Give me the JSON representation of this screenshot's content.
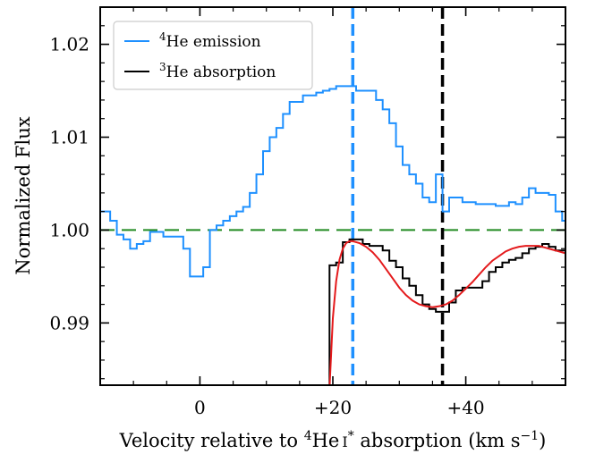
{
  "chart_data": {
    "type": "line",
    "xlabel_parts": [
      "Velocity relative to ",
      "4",
      "He",
      "I",
      "*",
      " absorption (km s",
      "−1",
      ")"
    ],
    "ylabel": "Normalized Flux",
    "xlim": [
      -15,
      55
    ],
    "ylim": [
      0.9833,
      1.024
    ],
    "xticks": [
      0,
      20,
      40
    ],
    "xtick_labels": [
      "0",
      "+20",
      "+40"
    ],
    "yticks": [
      0.99,
      1.0,
      1.01,
      1.02
    ],
    "ytick_labels": [
      "0.99",
      "1.00",
      "1.01",
      "1.02"
    ],
    "legend_location": "upper-left",
    "colors": {
      "emission": "#1e90ff",
      "absorption": "#000000",
      "fit": "#e41a1c",
      "continuum": "#228b22"
    },
    "series": [
      {
        "name_parts": [
          "4",
          "He emission"
        ],
        "style": "steps-mid",
        "color": "#1e90ff",
        "x": [
          -15,
          -14,
          -13,
          -12,
          -11,
          -10,
          -9,
          -8,
          -7,
          -6,
          -5,
          -4,
          -3,
          -2,
          -1,
          0,
          1,
          2,
          3,
          4,
          5,
          6,
          7,
          8,
          9,
          10,
          11,
          12,
          13,
          14,
          15,
          16,
          17,
          18,
          19,
          20,
          21,
          22,
          23,
          24,
          25,
          26,
          27,
          28,
          29,
          30,
          31,
          32,
          33,
          34,
          35,
          36,
          37,
          38,
          39,
          40,
          41,
          42,
          43,
          44,
          45,
          46,
          47,
          48,
          49,
          50,
          51,
          52,
          53,
          54,
          55
        ],
        "y": [
          1.002,
          1.002,
          1.001,
          0.9995,
          0.999,
          0.998,
          0.9985,
          0.9988,
          0.9998,
          0.9998,
          0.9993,
          0.9993,
          0.9993,
          0.998,
          0.995,
          0.995,
          0.996,
          1.0,
          1.0005,
          1.001,
          1.0015,
          1.002,
          1.0025,
          1.004,
          1.006,
          1.0085,
          1.01,
          1.011,
          1.0125,
          1.0138,
          1.0138,
          1.0145,
          1.0145,
          1.0148,
          1.015,
          1.0152,
          1.0155,
          1.0155,
          1.0155,
          1.015,
          1.015,
          1.015,
          1.014,
          1.013,
          1.0115,
          1.009,
          1.007,
          1.006,
          1.005,
          1.0035,
          1.003,
          1.006,
          1.002,
          1.0035,
          1.0035,
          1.003,
          1.003,
          1.0028,
          1.0028,
          1.0028,
          1.0026,
          1.0026,
          1.003,
          1.0028,
          1.0035,
          1.0045,
          1.004,
          1.004,
          1.0038,
          1.002,
          1.001
        ]
      },
      {
        "name_parts": [
          "3",
          "He absorption"
        ],
        "style": "steps-mid",
        "color": "#000000",
        "x": [
          18,
          19,
          20,
          21,
          22,
          23,
          24,
          25,
          26,
          27,
          28,
          29,
          30,
          31,
          32,
          33,
          34,
          35,
          36,
          37,
          38,
          39,
          40,
          41,
          42,
          43,
          44,
          45,
          46,
          47,
          48,
          49,
          50,
          51,
          52,
          53,
          54,
          55
        ],
        "y": [
          0.98,
          0.983,
          0.9962,
          0.9965,
          0.9987,
          0.999,
          0.999,
          0.9985,
          0.9983,
          0.9983,
          0.9978,
          0.9967,
          0.996,
          0.9948,
          0.994,
          0.993,
          0.992,
          0.9915,
          0.9912,
          0.9912,
          0.9922,
          0.9935,
          0.9938,
          0.9938,
          0.9938,
          0.9945,
          0.9955,
          0.996,
          0.9965,
          0.9968,
          0.997,
          0.9975,
          0.998,
          0.9982,
          0.9985,
          0.9982,
          0.9978,
          0.9978
        ]
      },
      {
        "name": "",
        "style": "smooth",
        "color": "#e41a1c",
        "x": [
          19.5,
          20,
          20.5,
          21,
          21.5,
          22,
          22.5,
          23,
          23.5,
          24,
          25,
          26,
          27,
          28,
          29,
          30,
          31,
          32,
          33,
          34,
          35,
          36,
          37,
          38,
          39,
          40,
          41,
          42,
          43,
          44,
          45,
          46,
          47,
          48,
          49,
          50,
          51,
          52,
          53,
          54,
          55
        ],
        "y": [
          0.983,
          0.9905,
          0.9945,
          0.9968,
          0.998,
          0.9986,
          0.9988,
          0.9988,
          0.9987,
          0.9986,
          0.9982,
          0.9976,
          0.9968,
          0.9958,
          0.9948,
          0.9938,
          0.993,
          0.9924,
          0.992,
          0.9918,
          0.9917,
          0.9918,
          0.992,
          0.9924,
          0.993,
          0.9937,
          0.9944,
          0.9952,
          0.996,
          0.9967,
          0.9972,
          0.9977,
          0.998,
          0.9982,
          0.9983,
          0.9983,
          0.9983,
          0.9981,
          0.9979,
          0.9977,
          0.9975
        ]
      }
    ],
    "reference_lines": [
      {
        "orientation": "horizontal",
        "value": 1.0,
        "style": "dashed",
        "color": "#228b22"
      },
      {
        "orientation": "vertical",
        "value": 23.0,
        "style": "dashed",
        "color": "#1e90ff"
      },
      {
        "orientation": "vertical",
        "value": 36.5,
        "style": "dashed",
        "color": "#000000"
      }
    ]
  }
}
